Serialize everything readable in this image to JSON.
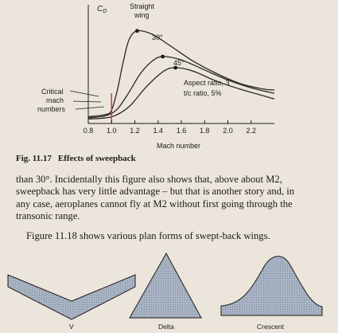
{
  "chart_data": {
    "type": "line",
    "ylabel": "C_D",
    "xlabel": "Mach number",
    "xlim": [
      0.8,
      2.4
    ],
    "x_ticks": [
      "0.8",
      "1.0",
      "1.2",
      "1.4",
      "1.6",
      "1.8",
      "2.0",
      "2.2"
    ],
    "grid": false,
    "series": [
      {
        "name": "Straight wing",
        "x": [
          0.8,
          0.95,
          1.0,
          1.05,
          1.1,
          1.15,
          1.22,
          1.35,
          1.5,
          1.7,
          1.9,
          2.1,
          2.3,
          2.4
        ],
        "values": [
          0.06,
          0.08,
          0.12,
          0.3,
          0.55,
          0.75,
          0.83,
          0.8,
          0.7,
          0.56,
          0.45,
          0.36,
          0.31,
          0.3
        ]
      },
      {
        "name": "30°",
        "x": [
          0.8,
          0.95,
          1.05,
          1.15,
          1.25,
          1.35,
          1.44,
          1.6,
          1.8,
          2.0,
          2.2,
          2.4
        ],
        "values": [
          0.05,
          0.07,
          0.13,
          0.28,
          0.45,
          0.56,
          0.6,
          0.57,
          0.48,
          0.39,
          0.32,
          0.27
        ]
      },
      {
        "name": "45°",
        "x": [
          0.8,
          1.0,
          1.15,
          1.3,
          1.45,
          1.55,
          1.7,
          1.9,
          2.1,
          2.3,
          2.4
        ],
        "values": [
          0.04,
          0.06,
          0.15,
          0.33,
          0.47,
          0.5,
          0.47,
          0.38,
          0.31,
          0.25,
          0.22
        ]
      }
    ],
    "peak_markers": [
      {
        "series": "Straight wing",
        "x": 1.22,
        "y": 0.83
      },
      {
        "series": "30°",
        "x": 1.44,
        "y": 0.6
      },
      {
        "series": "45°",
        "x": 1.55,
        "y": 0.5
      }
    ],
    "critical_mach_marker": 1.0,
    "annotations": {
      "critical_1": "Critical",
      "critical_2": "mach",
      "critical_3": "numbers",
      "aspect_1": "Aspect ratio, 3",
      "aspect_2": "t/c ratio, 5%",
      "straight_1": "Straight",
      "straight_2": "wing",
      "s30": "30°",
      "s45": "45°"
    }
  },
  "caption": {
    "number": "Fig. 11.17",
    "title": "Effects of sweepback"
  },
  "paragraph1": {
    "line1": "than 30°. Incidentally this figure also shows that, above about M2,",
    "line2": "sweepback has very little advantage – but that is another story and, in",
    "line3": "any case, aeroplanes cannot fly at M2 without first going through the",
    "line4": "transonic range."
  },
  "paragraph2": "Figure 11.18 shows various plan forms of swept-back wings.",
  "planforms": {
    "fill": "#a9b4c4",
    "labels": {
      "v": "V",
      "delta": "Delta",
      "crescent": "Crescent"
    }
  }
}
